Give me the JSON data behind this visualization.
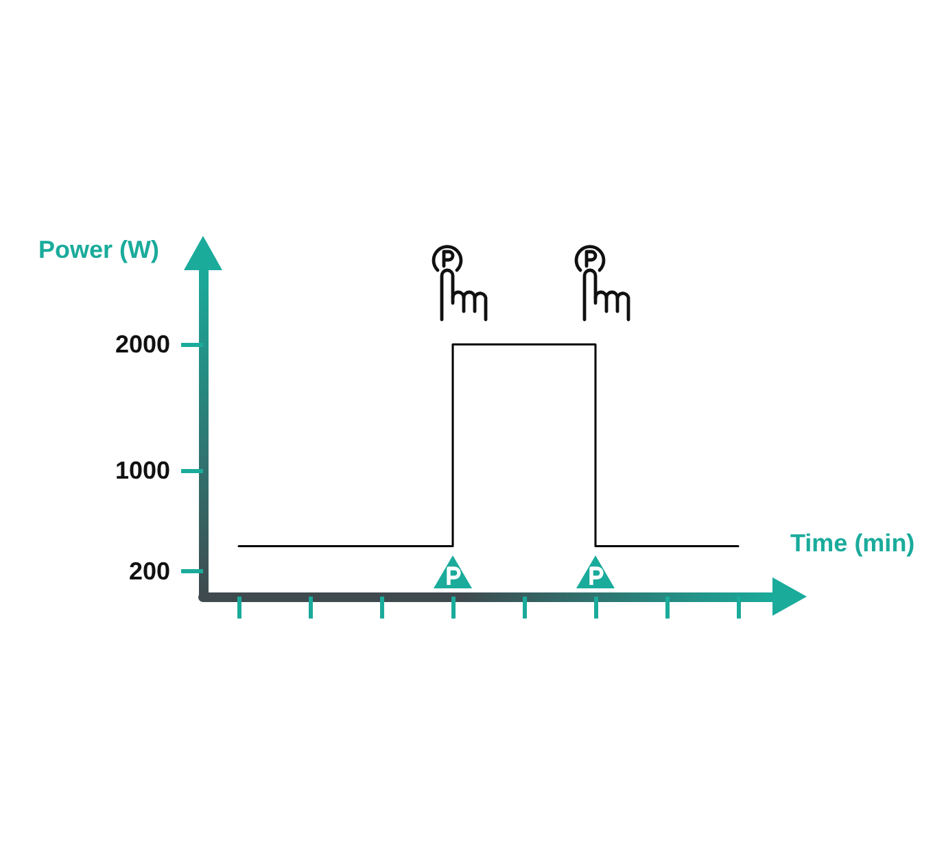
{
  "chart_data": {
    "type": "step",
    "xlabel": "Time (min)",
    "ylabel": "Power (W)",
    "categories": [
      null,
      null,
      null,
      null,
      null,
      null,
      null,
      null
    ],
    "values": [
      400,
      400,
      400,
      2000,
      2000,
      400,
      400,
      400
    ],
    "color": "#000000",
    "ylim": [
      0,
      2600
    ],
    "yticks": [
      200,
      1000,
      2000
    ],
    "tick_labels": "y"
  }
}
